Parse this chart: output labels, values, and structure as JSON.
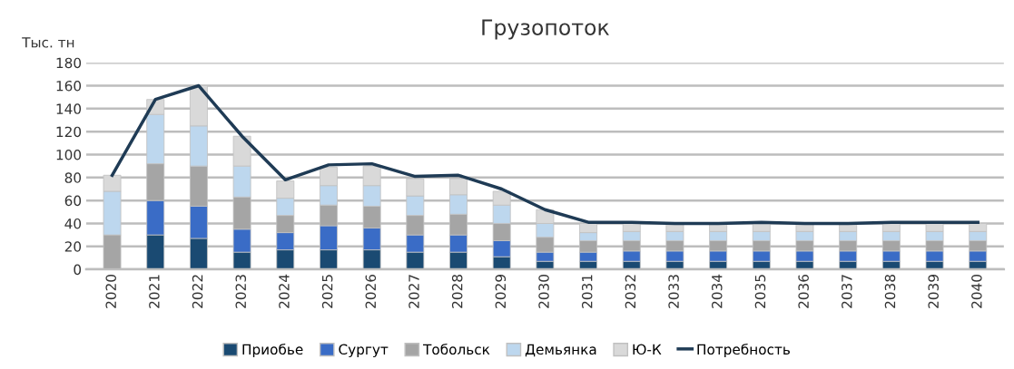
{
  "chart_data": {
    "type": "bar",
    "title": "Грузопоток",
    "ylabel": "Тыс. тн",
    "stacked": true,
    "categories": [
      "2020",
      "2021",
      "2022",
      "2023",
      "2024",
      "2025",
      "2026",
      "2027",
      "2028",
      "2029",
      "2030",
      "2031",
      "2032",
      "2033",
      "2034",
      "2035",
      "2036",
      "2037",
      "2038",
      "2039",
      "2040"
    ],
    "series": [
      {
        "name": "Приобье",
        "color": "#1a4a72",
        "values": [
          0,
          30,
          27,
          15,
          17,
          17,
          17,
          15,
          15,
          11,
          7,
          7,
          7,
          7,
          7,
          7,
          7,
          7,
          7,
          7,
          7
        ]
      },
      {
        "name": "Сургут",
        "color": "#3a6cc6",
        "values": [
          0,
          30,
          28,
          20,
          15,
          21,
          19,
          15,
          15,
          14,
          8,
          8,
          9,
          9,
          9,
          9,
          9,
          9,
          9,
          9,
          9
        ]
      },
      {
        "name": "Тобольск",
        "color": "#a5a5a5",
        "values": [
          30,
          32,
          35,
          28,
          15,
          18,
          19,
          17,
          18,
          15,
          13,
          10,
          9,
          9,
          9,
          9,
          9,
          9,
          9,
          9,
          9
        ]
      },
      {
        "name": "Демьянка",
        "color": "#bdd7ee",
        "values": [
          38,
          43,
          35,
          27,
          15,
          17,
          18,
          17,
          17,
          16,
          12,
          7,
          8,
          8,
          8,
          8,
          8,
          8,
          8,
          8,
          8
        ]
      },
      {
        "name": "Ю-К",
        "color": "#d9d9d9",
        "values": [
          14,
          13,
          35,
          26,
          15,
          16,
          17,
          15,
          14,
          12,
          12,
          8,
          7,
          7,
          7,
          7,
          7,
          7,
          7,
          7,
          7
        ]
      },
      {
        "name": "Потребность",
        "type": "line",
        "color": "#1f3b55",
        "values": [
          82,
          148,
          160,
          116,
          78,
          91,
          92,
          81,
          82,
          70,
          52,
          41,
          41,
          40,
          40,
          41,
          40,
          40,
          41,
          41,
          41
        ]
      }
    ],
    "ylim": [
      0,
      180
    ],
    "yticks": [
      0,
      20,
      40,
      60,
      80,
      100,
      120,
      140,
      160,
      180
    ],
    "grid": "y",
    "legend": "bottom",
    "marker": "none"
  }
}
